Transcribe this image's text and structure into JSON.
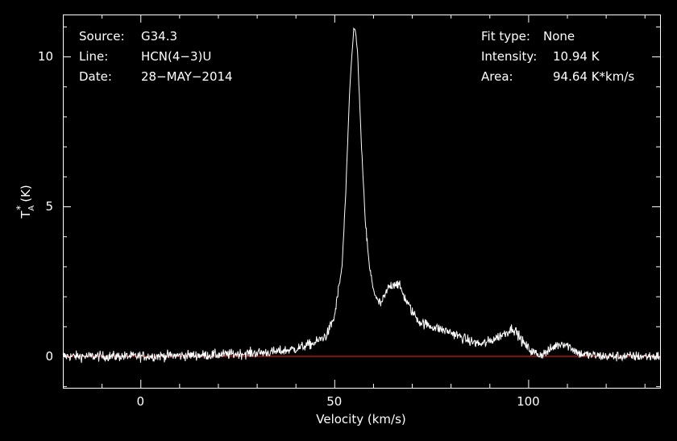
{
  "info_left": {
    "source_label": "Source:",
    "source_value": "G34.3",
    "line_label": "Line:",
    "line_value": "HCN(4−3)U",
    "date_label": "Date:",
    "date_value": "28−MAY−2014"
  },
  "info_right": {
    "fit_label": "Fit type:",
    "fit_value": "None",
    "intensity_label": "Intensity:",
    "intensity_value": "10.94 K",
    "area_label": "Area:",
    "area_value": "94.64 K*km/s"
  },
  "colors": {
    "background": "#000000",
    "spectrum": "#ffffff",
    "baseline": "#ff2020",
    "axes": "#ffffff"
  },
  "chart_data": {
    "type": "line",
    "xlabel": "Velocity (km/s)",
    "ylabel_main": "T",
    "ylabel_sup": "*",
    "ylabel_sub": "A",
    "ylabel_unit": "(K)",
    "xlim": [
      -20,
      134
    ],
    "ylim": [
      -1.05,
      11.4
    ],
    "xticks": [
      0,
      50,
      100
    ],
    "yticks": [
      0,
      5,
      10
    ],
    "baseline_y": 0,
    "noise_rms": 0.12,
    "series": [
      {
        "x": [
          -20,
          0,
          20,
          35,
          40,
          45,
          48,
          50,
          52,
          53,
          54,
          55,
          55.5,
          56,
          57,
          58,
          59,
          60,
          61,
          62,
          63,
          64,
          65,
          66,
          67,
          68,
          70,
          72,
          75,
          80,
          85,
          88,
          90,
          93,
          95,
          96,
          97,
          99,
          101,
          103,
          105,
          107,
          109,
          111,
          113,
          115,
          120,
          134
        ],
        "y": [
          0,
          0,
          0.05,
          0.15,
          0.25,
          0.45,
          0.7,
          1.3,
          3.0,
          5.6,
          9.0,
          10.94,
          10.8,
          10.1,
          7.0,
          4.5,
          3.0,
          2.3,
          1.85,
          1.75,
          2.0,
          2.3,
          2.4,
          2.45,
          2.3,
          2.0,
          1.5,
          1.15,
          1.0,
          0.8,
          0.5,
          0.4,
          0.5,
          0.7,
          0.85,
          0.95,
          0.8,
          0.4,
          0.15,
          0.05,
          0.15,
          0.35,
          0.45,
          0.3,
          0.1,
          0.05,
          0,
          0
        ]
      }
    ]
  }
}
